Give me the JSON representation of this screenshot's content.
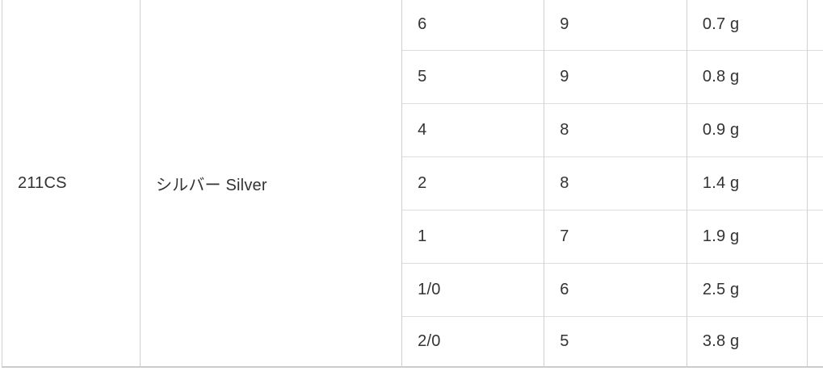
{
  "table": {
    "product": {
      "code": "211CS",
      "color": "シルバー Silver"
    },
    "rows": [
      {
        "size": "6",
        "count": "9",
        "weight": "0.7 g"
      },
      {
        "size": "5",
        "count": "9",
        "weight": "0.8 g"
      },
      {
        "size": "4",
        "count": "8",
        "weight": "0.9 g"
      },
      {
        "size": "2",
        "count": "8",
        "weight": "1.4 g"
      },
      {
        "size": "1",
        "count": "7",
        "weight": "1.9 g"
      },
      {
        "size": "1/0",
        "count": "6",
        "weight": "2.5 g"
      },
      {
        "size": "2/0",
        "count": "5",
        "weight": "3.8 g"
      }
    ]
  },
  "colors": {
    "background": "#ffffff",
    "text": "#333333",
    "grid_vertical": "#d0d0d0",
    "grid_horizontal": "#dedede",
    "table_bottom_border": "#cccccc"
  }
}
